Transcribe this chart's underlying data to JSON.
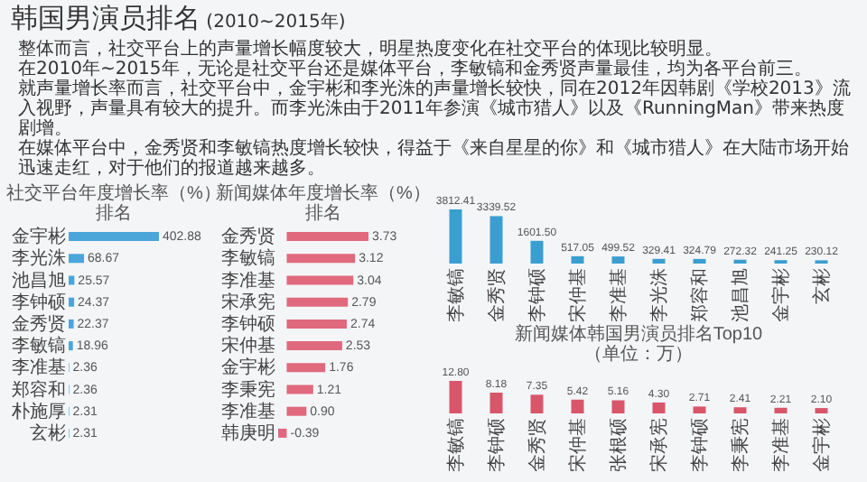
{
  "chart_data": [
    {
      "type": "other",
      "title": "韩国男演员排名",
      "subtitle": "(2010~2015年)",
      "annotations": [
        "整体而言，社交平台上的声量增长幅度较大，明星热度变化在社交平台的体现比较明显。",
        "在2010年~2015年，无论是社交平台还是媒体平台，李敏镐和金秀贤声量最佳，均为各平台前三。",
        "就声量增长率而言，社交平台中，金宇彬和李光洙的声量增长较快，同在2012年因韩剧《学校2013》流入视野，声量具有较大的提升。而李光洙由于2011年参演《城市猎人》以及《RunningMan》带来热度剧增。",
        "在媒体平台中，金秀贤和李敏镐热度增长较快，得益于《来自星星的你》和《城市猎人》在大陆市场开始迅速走红，对于他们的报道越来越多。"
      ]
    },
    {
      "type": "bar",
      "orientation": "horizontal",
      "title": "社交平台年度增长率（%）",
      "subtitle": "排名",
      "color": "#4aa6d9",
      "categories": [
        "金宇彬",
        "李光洙",
        "池昌旭",
        "李钟硕",
        "金秀贤",
        "李敏镐",
        "李准基",
        "郑容和",
        "朴施厚",
        "玄彬"
      ],
      "values": [
        402.88,
        68.67,
        25.57,
        24.37,
        22.37,
        18.96,
        2.36,
        2.36,
        2.31,
        2.31
      ],
      "value_labels": [
        "402.88",
        "68.67",
        "25.57",
        "24.37",
        "22.37",
        "18.96",
        "2.36",
        "2.36",
        "2.31",
        "2.31"
      ]
    },
    {
      "type": "bar",
      "orientation": "horizontal",
      "title": "新闻媒体年度增长率（%）",
      "subtitle": "排名",
      "color": "#e0697d",
      "categories": [
        "金秀贤",
        "李敏镐",
        "李准基",
        "宋承宪",
        "李钟硕",
        "宋仲基",
        "金宇彬",
        "李秉宪",
        "李准基",
        "韩庚明"
      ],
      "values": [
        3.73,
        3.12,
        3.04,
        2.79,
        2.74,
        2.53,
        1.76,
        1.21,
        0.9,
        -0.39
      ],
      "value_labels": [
        "3.73",
        "3.12",
        "3.04",
        "2.79",
        "2.74",
        "2.53",
        "1.76",
        "1.21",
        "0.90",
        "-0.39"
      ]
    },
    {
      "type": "bar",
      "color": "#3a9fd0",
      "categories": [
        "李敏镐",
        "金秀贤",
        "李钟硕",
        "宋仲基",
        "李准基",
        "李光洙",
        "郑容和",
        "池昌旭",
        "金宇彬",
        "玄彬"
      ],
      "values": [
        3812.41,
        3339.52,
        1601.5,
        517.05,
        499.52,
        329.41,
        324.79,
        272.32,
        241.25,
        230.12
      ],
      "value_labels": [
        "3812.41",
        "3339.52",
        "1601.50",
        "517.05",
        "499.52",
        "329.41",
        "324.79",
        "272.32",
        "241.25",
        "230.12"
      ]
    },
    {
      "type": "bar",
      "title": "新闻媒体韩国男演员排名Top10",
      "subtitle": "（单位：万）",
      "color": "#d9566a",
      "categories": [
        "李敏镐",
        "李钟硕",
        "金秀贤",
        "宋仲基",
        "张根硕",
        "宋承宪",
        "李钟硕",
        "李秉宪",
        "李准基",
        "金宇彬"
      ],
      "values": [
        12.8,
        8.18,
        7.35,
        5.42,
        5.16,
        4.3,
        2.71,
        2.41,
        2.21,
        2.1
      ],
      "value_labels": [
        "12.80",
        "8.18",
        "7.35",
        "5.42",
        "5.16",
        "4.30",
        "2.71",
        "2.41",
        "2.21",
        "2.10"
      ]
    }
  ]
}
